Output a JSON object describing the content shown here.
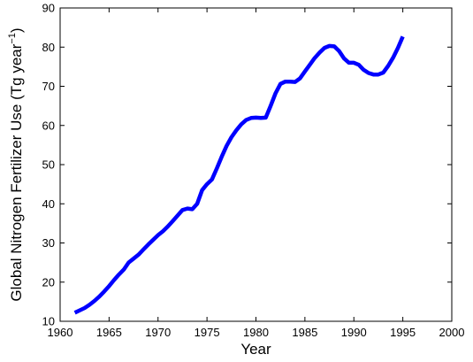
{
  "chart_data": {
    "type": "line",
    "title": "",
    "xlabel": "Year",
    "ylabel_main": "Global Nitrogen Fertilizer Use (Tg year",
    "ylabel_sup": "−1",
    "ylabel_tail": ")",
    "xlim": [
      1960,
      2000
    ],
    "ylim": [
      10,
      90
    ],
    "x_ticks": [
      1960,
      1965,
      1970,
      1975,
      1980,
      1985,
      1990,
      1995,
      2000
    ],
    "y_ticks": [
      10,
      20,
      30,
      40,
      50,
      60,
      70,
      80,
      90
    ],
    "grid": false,
    "line_color": "#0000ff",
    "series": [
      {
        "x": [
          1961.5,
          1962,
          1962.5,
          1963,
          1963.5,
          1964,
          1964.5,
          1965,
          1965.5,
          1966,
          1966.5,
          1967,
          1967.5,
          1968,
          1968.5,
          1969,
          1969.5,
          1970,
          1970.5,
          1971,
          1971.5,
          1972,
          1972.5,
          1973,
          1973.5,
          1974,
          1974.5,
          1975,
          1975.5,
          1976,
          1976.5,
          1977,
          1977.5,
          1978,
          1978.5,
          1979,
          1979.5,
          1980,
          1980.5,
          1981,
          1981.5,
          1982,
          1982.5,
          1983,
          1983.5,
          1984,
          1984.5,
          1985,
          1985.5,
          1986,
          1986.5,
          1987,
          1987.5,
          1988,
          1988.5,
          1989,
          1989.5,
          1990,
          1990.5,
          1991,
          1991.5,
          1992,
          1992.5,
          1993,
          1993.5,
          1994,
          1994.5,
          1995
        ],
        "y": [
          12.2,
          12.8,
          13.4,
          14.2,
          15.2,
          16.3,
          17.6,
          19.0,
          20.5,
          21.9,
          23.2,
          25.0,
          26.0,
          27.0,
          28.3,
          29.6,
          30.8,
          32.0,
          33.0,
          34.2,
          35.6,
          37.0,
          38.4,
          38.8,
          38.6,
          40.0,
          43.5,
          45.0,
          46.2,
          49.0,
          52.0,
          54.8,
          57.0,
          58.8,
          60.3,
          61.4,
          61.9,
          62.0,
          61.9,
          62.0,
          65.0,
          68.2,
          70.6,
          71.2,
          71.2,
          71.1,
          72.0,
          73.8,
          75.5,
          77.2,
          78.6,
          79.8,
          80.3,
          80.2,
          79.0,
          77.1,
          76.0,
          76.0,
          75.5,
          74.2,
          73.4,
          73.0,
          73.0,
          73.5,
          75.2,
          77.3,
          79.8,
          82.7
        ]
      }
    ]
  }
}
